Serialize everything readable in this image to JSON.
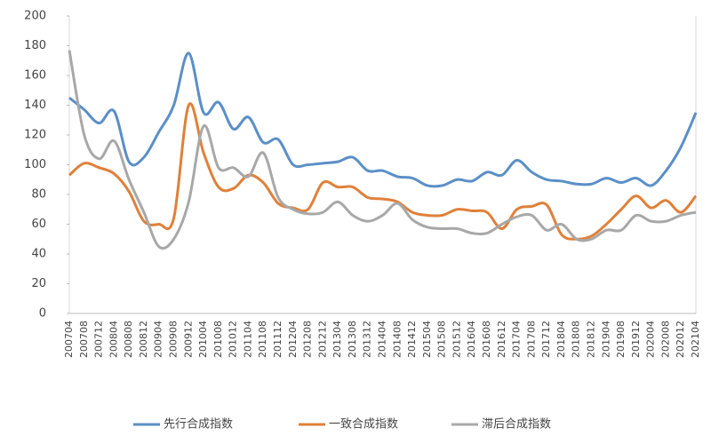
{
  "chart_data": {
    "type": "line",
    "categories": [
      "200704",
      "200708",
      "200712",
      "200804",
      "200808",
      "200812",
      "200904",
      "200908",
      "200912",
      "201004",
      "201008",
      "201012",
      "201104",
      "201108",
      "201112",
      "201204",
      "201208",
      "201212",
      "201304",
      "201308",
      "201312",
      "201404",
      "201408",
      "201412",
      "201504",
      "201508",
      "201512",
      "201604",
      "201608",
      "201612",
      "201704",
      "201708",
      "201712",
      "201804",
      "201808",
      "201812",
      "201904",
      "201908",
      "201912",
      "202004",
      "202008",
      "202012",
      "202104"
    ],
    "series": [
      {
        "name": "先行合成指数",
        "color": "#5b8fc7",
        "values": [
          145,
          137,
          128,
          136,
          102,
          105,
          122,
          140,
          175,
          135,
          142,
          124,
          132,
          115,
          117,
          100,
          100,
          101,
          102,
          105,
          96,
          96,
          92,
          91,
          86,
          86,
          90,
          89,
          95,
          93,
          103,
          95,
          90,
          89,
          87,
          87,
          91,
          88,
          91,
          86,
          96,
          112,
          135
        ]
      },
      {
        "name": "一致合成指数",
        "color": "#e0803a",
        "values": [
          93,
          101,
          98,
          94,
          82,
          62,
          60,
          64,
          140,
          108,
          85,
          84,
          93,
          88,
          74,
          71,
          70,
          88,
          85,
          85,
          78,
          77,
          75,
          68,
          66,
          66,
          70,
          69,
          68,
          57,
          70,
          72,
          73,
          53,
          50,
          52,
          60,
          70,
          79,
          71,
          76,
          68,
          79
        ]
      },
      {
        "name": "滞后合成指数",
        "color": "#a8a8a8",
        "values": [
          177,
          120,
          104,
          116,
          90,
          68,
          45,
          50,
          75,
          126,
          98,
          98,
          92,
          108,
          78,
          70,
          67,
          68,
          75,
          66,
          62,
          66,
          74,
          63,
          58,
          57,
          57,
          54,
          54,
          60,
          65,
          66,
          56,
          60,
          50,
          50,
          56,
          56,
          66,
          62,
          62,
          66,
          68
        ]
      }
    ],
    "ylim": [
      0,
      200
    ],
    "yticks": [
      0,
      20,
      40,
      60,
      80,
      100,
      120,
      140,
      160,
      180,
      200
    ],
    "legend": "bottom"
  }
}
